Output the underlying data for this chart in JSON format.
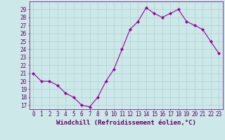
{
  "x": [
    0,
    1,
    2,
    3,
    4,
    5,
    6,
    7,
    8,
    9,
    10,
    11,
    12,
    13,
    14,
    15,
    16,
    17,
    18,
    19,
    20,
    21,
    22,
    23
  ],
  "y": [
    21,
    20,
    20,
    19.5,
    18.5,
    18,
    17,
    16.8,
    18,
    20,
    21.5,
    24,
    26.5,
    27.5,
    29.2,
    28.5,
    28,
    28.5,
    29,
    27.5,
    27,
    26.5,
    25,
    23.5
  ],
  "line_color": "#990099",
  "marker": "D",
  "marker_size": 2.0,
  "bg_color": "#cce8e8",
  "grid_color": "#aacccc",
  "xlabel": "Windchill (Refroidissement éolien,°C)",
  "xlim": [
    -0.5,
    23.5
  ],
  "ylim": [
    16.5,
    30
  ],
  "yticks": [
    17,
    18,
    19,
    20,
    21,
    22,
    23,
    24,
    25,
    26,
    27,
    28,
    29
  ],
  "xticks": [
    0,
    1,
    2,
    3,
    4,
    5,
    6,
    7,
    8,
    9,
    10,
    11,
    12,
    13,
    14,
    15,
    16,
    17,
    18,
    19,
    20,
    21,
    22,
    23
  ],
  "xlabel_fontsize": 6.5,
  "tick_fontsize": 5.5,
  "label_color": "#660066",
  "line_width": 0.8
}
